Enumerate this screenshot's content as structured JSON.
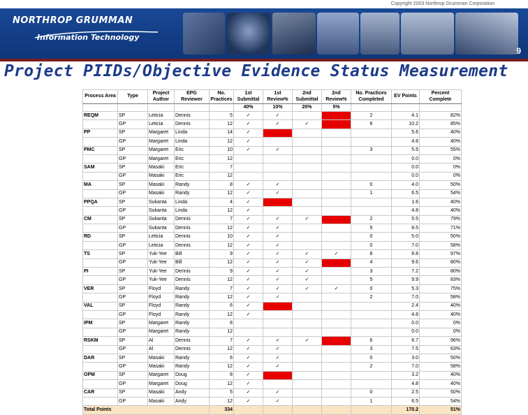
{
  "banner": {
    "copyright": "Copyright 2003 Northrop Grumman Corporation",
    "logo_name": "NORTHROP GRUMMAN",
    "logo_sub": "Information Technology",
    "page_number": "9"
  },
  "slide": {
    "title": "Project PIIDs/Objective Evidence Status Measurement"
  },
  "table": {
    "headers": [
      "Process Area",
      "Type",
      "Project Author",
      "EPG Reviewer",
      "No. Practices",
      "1st Submittal",
      "1st Review%",
      "2nd Submittal",
      "2nd Review%",
      "No. Practices Completed",
      "EV Points",
      "Percent Complete"
    ],
    "subheader": [
      "",
      "",
      "",
      "",
      "",
      "40%",
      "10%",
      "20%",
      "5%",
      "",
      "",
      ""
    ],
    "rows": [
      {
        "area": "REQM",
        "type": "SP",
        "author": "Leticia",
        "reviewer": "Dennis",
        "n": "5",
        "s1": "✓",
        "r1": "✓",
        "s2": "",
        "r2": "RED",
        "done": "2",
        "ev": "4.1",
        "pct": "82%"
      },
      {
        "area": "",
        "type": "GP",
        "author": "Leticia",
        "reviewer": "Dennis",
        "n": "12",
        "s1": "✓",
        "r1": "✓",
        "s2": "✓",
        "r2": "RED",
        "done": "6",
        "ev": "10.2",
        "pct": "85%"
      },
      {
        "area": "PP",
        "type": "SP",
        "author": "Margaret",
        "reviewer": "Linda",
        "n": "14",
        "s1": "✓",
        "r1": "RED",
        "s2": "",
        "r2": "",
        "done": "",
        "ev": "5.6",
        "pct": "40%"
      },
      {
        "area": "",
        "type": "GP",
        "author": "Margaret",
        "reviewer": "Linda",
        "n": "12",
        "s1": "✓",
        "r1": "",
        "s2": "",
        "r2": "",
        "done": "",
        "ev": "4.8",
        "pct": "40%"
      },
      {
        "area": "PMC",
        "type": "SP",
        "author": "Margaret",
        "reviewer": "Eric",
        "n": "10",
        "s1": "✓",
        "r1": "✓",
        "s2": "",
        "r2": "",
        "done": "3",
        "ev": "5.5",
        "pct": "55%"
      },
      {
        "area": "",
        "type": "GP",
        "author": "Margaret",
        "reviewer": "Eric",
        "n": "12",
        "s1": "",
        "r1": "",
        "s2": "",
        "r2": "",
        "done": "",
        "ev": "0.0",
        "pct": "0%"
      },
      {
        "area": "SAM",
        "type": "SP",
        "author": "Masaki",
        "reviewer": "Eric",
        "n": "7",
        "s1": "",
        "r1": "",
        "s2": "",
        "r2": "",
        "done": "",
        "ev": "0.0",
        "pct": "0%"
      },
      {
        "area": "",
        "type": "GP",
        "author": "Masaki",
        "reviewer": "Eric",
        "n": "12",
        "s1": "",
        "r1": "",
        "s2": "",
        "r2": "",
        "done": "",
        "ev": "0.0",
        "pct": "0%"
      },
      {
        "area": "MA",
        "type": "SP",
        "author": "Masaki",
        "reviewer": "Randy",
        "n": "8",
        "s1": "✓",
        "r1": "✓",
        "s2": "",
        "r2": "",
        "done": "0",
        "ev": "4.0",
        "pct": "50%"
      },
      {
        "area": "",
        "type": "GP",
        "author": "Masaki",
        "reviewer": "Randy",
        "n": "12",
        "s1": "✓",
        "r1": "✓",
        "s2": "",
        "r2": "",
        "done": "1",
        "ev": "6.5",
        "pct": "54%"
      },
      {
        "area": "PPQA",
        "type": "SP",
        "author": "Sukanta",
        "reviewer": "Linda",
        "n": "4",
        "s1": "✓",
        "r1": "RED",
        "s2": "",
        "r2": "",
        "done": "",
        "ev": "1.6",
        "pct": "40%"
      },
      {
        "area": "",
        "type": "GP",
        "author": "Sukanta",
        "reviewer": "Linda",
        "n": "12",
        "s1": "✓",
        "r1": "",
        "s2": "",
        "r2": "",
        "done": "",
        "ev": "4.8",
        "pct": "40%"
      },
      {
        "area": "CM",
        "type": "SP",
        "author": "Sukanta",
        "reviewer": "Dennis",
        "n": "7",
        "s1": "✓",
        "r1": "✓",
        "s2": "✓",
        "r2": "RED",
        "done": "2",
        "ev": "5.5",
        "pct": "79%"
      },
      {
        "area": "",
        "type": "GP",
        "author": "Sukanta",
        "reviewer": "Dennis",
        "n": "12",
        "s1": "✓",
        "r1": "✓",
        "s2": "",
        "r2": "",
        "done": "5",
        "ev": "8.5",
        "pct": "71%"
      },
      {
        "area": "RD",
        "type": "SP",
        "author": "Leticia",
        "reviewer": "Dennis",
        "n": "10",
        "s1": "✓",
        "r1": "✓",
        "s2": "",
        "r2": "",
        "done": "0",
        "ev": "5.0",
        "pct": "50%"
      },
      {
        "area": "",
        "type": "GP",
        "author": "Leticia",
        "reviewer": "Dennis",
        "n": "12",
        "s1": "✓",
        "r1": "✓",
        "s2": "",
        "r2": "",
        "done": "0",
        "ev": "7.0",
        "pct": "58%"
      },
      {
        "area": "TS",
        "type": "SP",
        "author": "Yuk-Yee",
        "reviewer": "Bill",
        "n": "9",
        "s1": "✓",
        "r1": "✓",
        "s2": "✓",
        "r2": "✓",
        "done": "8",
        "ev": "8.8",
        "pct": "97%"
      },
      {
        "area": "",
        "type": "GP",
        "author": "Yuk-Yee",
        "reviewer": "Bill",
        "n": "12",
        "s1": "✓",
        "r1": "✓",
        "s2": "✓",
        "r2": "RED",
        "done": "4",
        "ev": "9.6",
        "pct": "80%"
      },
      {
        "area": "PI",
        "type": "SP",
        "author": "Yuk-Yee",
        "reviewer": "Dennis",
        "n": "9",
        "s1": "✓",
        "r1": "✓",
        "s2": "✓",
        "r2": "",
        "done": "3",
        "ev": "7.2",
        "pct": "80%"
      },
      {
        "area": "",
        "type": "GP",
        "author": "Yuk-Yee",
        "reviewer": "Dennis",
        "n": "12",
        "s1": "✓",
        "r1": "✓",
        "s2": "✓",
        "r2": "",
        "done": "5",
        "ev": "9.9",
        "pct": "83%"
      },
      {
        "area": "VER",
        "type": "SP",
        "author": "Floyd",
        "reviewer": "Randy",
        "n": "7",
        "s1": "✓",
        "r1": "✓",
        "s2": "✓",
        "r2": "✓",
        "done": "0",
        "ev": "5.3",
        "pct": "75%"
      },
      {
        "area": "",
        "type": "GP",
        "author": "Floyd",
        "reviewer": "Randy",
        "n": "12",
        "s1": "✓",
        "r1": "✓",
        "s2": "",
        "r2": "",
        "done": "2",
        "ev": "7.0",
        "pct": "58%"
      },
      {
        "area": "VAL",
        "type": "SP",
        "author": "Floyd",
        "reviewer": "Randy",
        "n": "6",
        "s1": "✓",
        "r1": "RED",
        "s2": "",
        "r2": "",
        "done": "",
        "ev": "2.4",
        "pct": "40%"
      },
      {
        "area": "",
        "type": "GP",
        "author": "Floyd",
        "reviewer": "Randy",
        "n": "12",
        "s1": "✓",
        "r1": "",
        "s2": "",
        "r2": "",
        "done": "",
        "ev": "4.8",
        "pct": "40%"
      },
      {
        "area": "IPM",
        "type": "SP",
        "author": "Margaret",
        "reviewer": "Randy",
        "n": "8",
        "s1": "",
        "r1": "",
        "s2": "",
        "r2": "",
        "done": "",
        "ev": "0.0",
        "pct": "0%"
      },
      {
        "area": "",
        "type": "GP",
        "author": "Margaret",
        "reviewer": "Randy",
        "n": "12",
        "s1": "",
        "r1": "",
        "s2": "",
        "r2": "",
        "done": "",
        "ev": "0.0",
        "pct": "0%"
      },
      {
        "area": "RSKM",
        "type": "SP",
        "author": "Al",
        "reviewer": "Dennis",
        "n": "7",
        "s1": "✓",
        "r1": "✓",
        "s2": "✓",
        "r2": "RED",
        "done": "6",
        "ev": "6.7",
        "pct": "96%"
      },
      {
        "area": "",
        "type": "GP",
        "author": "Al",
        "reviewer": "Dennis",
        "n": "12",
        "s1": "✓",
        "r1": "✓",
        "s2": "",
        "r2": "",
        "done": "3",
        "ev": "7.5",
        "pct": "63%"
      },
      {
        "area": "DAR",
        "type": "SP",
        "author": "Masaki",
        "reviewer": "Randy",
        "n": "6",
        "s1": "✓",
        "r1": "✓",
        "s2": "",
        "r2": "",
        "done": "0",
        "ev": "3.0",
        "pct": "50%"
      },
      {
        "area": "",
        "type": "GP",
        "author": "Masaki",
        "reviewer": "Randy",
        "n": "12",
        "s1": "✓",
        "r1": "✓",
        "s2": "",
        "r2": "",
        "done": "2",
        "ev": "7.0",
        "pct": "58%"
      },
      {
        "area": "OPM",
        "type": "SP",
        "author": "Margaret",
        "reviewer": "Doug",
        "n": "8",
        "s1": "✓",
        "r1": "RED",
        "s2": "",
        "r2": "",
        "done": "",
        "ev": "3.2",
        "pct": "40%"
      },
      {
        "area": "",
        "type": "GP",
        "author": "Margaret",
        "reviewer": "Doug",
        "n": "12",
        "s1": "✓",
        "r1": "",
        "s2": "",
        "r2": "",
        "done": "",
        "ev": "4.8",
        "pct": "40%"
      },
      {
        "area": "CAR",
        "type": "SP",
        "author": "Masaki",
        "reviewer": "Andy",
        "n": "5",
        "s1": "✓",
        "r1": "✓",
        "s2": "",
        "r2": "",
        "done": "0",
        "ev": "2.5",
        "pct": "50%"
      },
      {
        "area": "",
        "type": "GP",
        "author": "Masaki",
        "reviewer": "Andy",
        "n": "12",
        "s1": "✓",
        "r1": "✓",
        "s2": "",
        "r2": "",
        "done": "1",
        "ev": "6.5",
        "pct": "54%"
      }
    ],
    "total": {
      "label": "Total Points",
      "n": "334",
      "ev": "170.2",
      "pct": "51%"
    }
  },
  "colors": {
    "banner_blue": "#1a4b9a",
    "title_blue": "#1c3a8a",
    "alert_red": "#e60000",
    "total_bg": "#fce4c2"
  }
}
